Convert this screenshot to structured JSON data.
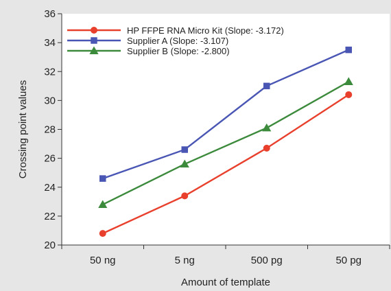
{
  "chart_data": {
    "type": "line",
    "title": "",
    "xlabel": "Amount of template",
    "ylabel": "Crossing point values",
    "categories": [
      "50 ng",
      "5 ng",
      "500 pg",
      "50 pg"
    ],
    "ylim": [
      20,
      36
    ],
    "yticks": [
      20,
      22,
      24,
      26,
      28,
      30,
      32,
      34,
      36
    ],
    "grid": false,
    "legend_position": "top-left",
    "background_color": "#e6e6e6",
    "plot_background_color": "#ffffff",
    "series": [
      {
        "name": "HP FFPE RNA Micro Kit (Slope: -3.172)",
        "values": [
          20.8,
          23.4,
          26.7,
          30.4
        ],
        "color": "#e8402c",
        "marker": "circle"
      },
      {
        "name": "Supplier A (Slope: -3.107)",
        "values": [
          24.6,
          26.6,
          31.0,
          33.5
        ],
        "color": "#4a56b4",
        "marker": "square"
      },
      {
        "name": "Supplier B (Slope: -2.800)",
        "values": [
          22.8,
          25.6,
          28.1,
          31.3
        ],
        "color": "#3c8a3c",
        "marker": "triangle"
      }
    ]
  }
}
